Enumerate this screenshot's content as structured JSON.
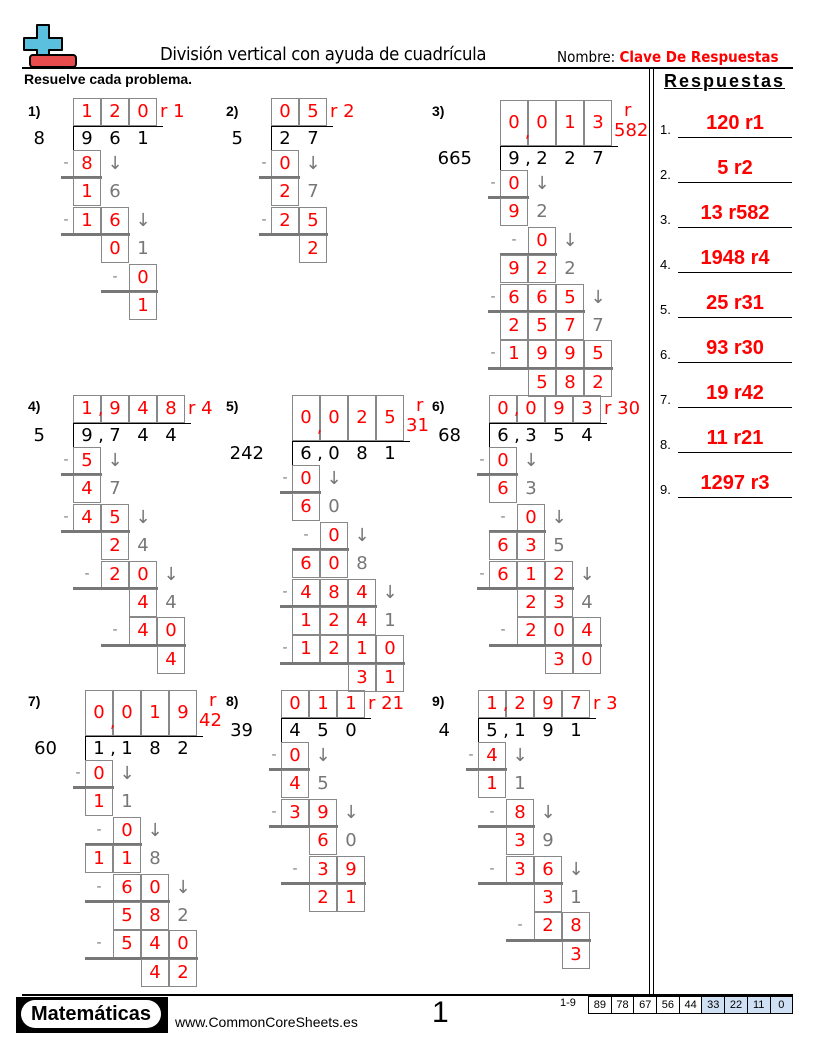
{
  "header": {
    "title": "División vertical con ayuda de cuadrícula",
    "name_label": "Nombre:",
    "name_value": "Clave De Respuestas",
    "instructions": "Resuelve cada problema.",
    "logo": "plus-minus-logo"
  },
  "colors": {
    "answer": "#ff0000",
    "work_gray": "#777777",
    "logo_blue": "#5bc0de",
    "logo_red": "#e84c4c",
    "score_blue": "#cfe0f5"
  },
  "answers": {
    "title": "Respuestas",
    "items": [
      {
        "num": "1.",
        "value": "120 r1"
      },
      {
        "num": "2.",
        "value": "5 r2"
      },
      {
        "num": "3.",
        "value": "13 r582"
      },
      {
        "num": "4.",
        "value": "1948 r4"
      },
      {
        "num": "5.",
        "value": "25 r31"
      },
      {
        "num": "6.",
        "value": "93 r30"
      },
      {
        "num": "7.",
        "value": "19 r42"
      },
      {
        "num": "8.",
        "value": "11 r21"
      },
      {
        "num": "9.",
        "value": "1297 r3"
      }
    ]
  },
  "problems": [
    {
      "label": "1)",
      "divisor": "8",
      "dividend": [
        "9",
        "6",
        "1"
      ],
      "dividend_comma": false,
      "quotient": [
        "1",
        "2",
        "0"
      ],
      "quotient_comma": false,
      "remainder_prefix": "r",
      "remainder": "1",
      "remainder_stacked": false,
      "rows": [
        {
          "minus": -1,
          "start": 0,
          "red": [
            "8"
          ],
          "gray": "↓"
        },
        {
          "start": 0,
          "red": [
            "1"
          ],
          "gray": "6"
        },
        {
          "minus": -1,
          "start": 0,
          "red": [
            "1",
            "6"
          ],
          "gray": "↓"
        },
        {
          "start": 1,
          "red": [
            "0"
          ],
          "gray": "1"
        },
        {
          "minus": 1,
          "start": 2,
          "red": [
            "0"
          ]
        },
        {
          "start": 2,
          "red": [
            "1"
          ]
        }
      ]
    },
    {
      "label": "2)",
      "divisor": "5",
      "dividend": [
        "2",
        "7"
      ],
      "dividend_comma": false,
      "quotient": [
        "0",
        "5"
      ],
      "quotient_comma": false,
      "remainder_prefix": "r",
      "remainder": "2",
      "remainder_stacked": false,
      "rows": [
        {
          "minus": -1,
          "start": 0,
          "red": [
            "0"
          ],
          "gray": "↓"
        },
        {
          "start": 0,
          "red": [
            "2"
          ],
          "gray": "7"
        },
        {
          "minus": -1,
          "start": 0,
          "red": [
            "2",
            "5"
          ]
        },
        {
          "start": 1,
          "red": [
            "2"
          ]
        }
      ]
    },
    {
      "label": "3)",
      "divisor": "665",
      "dividend": [
        "9",
        "2",
        "2",
        "7"
      ],
      "dividend_comma": true,
      "quotient": [
        "0",
        "0",
        "1",
        "3"
      ],
      "quotient_comma": true,
      "remainder_prefix": "r",
      "remainder": "582",
      "remainder_stacked": true,
      "rows": [
        {
          "minus": -1,
          "start": 0,
          "red": [
            "0"
          ],
          "gray": "↓"
        },
        {
          "start": 0,
          "red": [
            "9"
          ],
          "gray": "2"
        },
        {
          "minus": 0,
          "start": 1,
          "red": [
            "0"
          ],
          "gray": "↓"
        },
        {
          "start": 0,
          "red": [
            "9",
            "2"
          ],
          "gray": "2"
        },
        {
          "minus": -1,
          "start": 0,
          "red": [
            "6",
            "6",
            "5"
          ],
          "gray": "↓"
        },
        {
          "start": 0,
          "red": [
            "2",
            "5",
            "7"
          ],
          "gray": "7"
        },
        {
          "minus": -1,
          "start": 0,
          "red": [
            "1",
            "9",
            "9",
            "5"
          ]
        },
        {
          "start": 1,
          "red": [
            "5",
            "8",
            "2"
          ]
        }
      ]
    },
    {
      "label": "4)",
      "divisor": "5",
      "dividend": [
        "9",
        "7",
        "4",
        "4"
      ],
      "dividend_comma": true,
      "quotient": [
        "1",
        "9",
        "4",
        "8"
      ],
      "quotient_comma": true,
      "remainder_prefix": "r",
      "remainder": "4",
      "remainder_stacked": false,
      "rows": [
        {
          "minus": -1,
          "start": 0,
          "red": [
            "5"
          ],
          "gray": "↓"
        },
        {
          "start": 0,
          "red": [
            "4"
          ],
          "gray": "7"
        },
        {
          "minus": -1,
          "start": 0,
          "red": [
            "4",
            "5"
          ],
          "gray": "↓"
        },
        {
          "start": 1,
          "red": [
            "2"
          ],
          "gray": "4"
        },
        {
          "minus": 0,
          "start": 1,
          "red": [
            "2",
            "0"
          ],
          "gray": "↓"
        },
        {
          "start": 2,
          "red": [
            "4"
          ],
          "gray": "4"
        },
        {
          "minus": 1,
          "start": 2,
          "red": [
            "4",
            "0"
          ]
        },
        {
          "start": 3,
          "red": [
            "4"
          ]
        }
      ]
    },
    {
      "label": "5)",
      "divisor": "242",
      "dividend": [
        "6",
        "0",
        "8",
        "1"
      ],
      "dividend_comma": true,
      "quotient": [
        "0",
        "0",
        "2",
        "5"
      ],
      "quotient_comma": true,
      "remainder_prefix": "r",
      "remainder": "31",
      "remainder_stacked": true,
      "rows": [
        {
          "minus": -1,
          "start": 0,
          "red": [
            "0"
          ],
          "gray": "↓"
        },
        {
          "start": 0,
          "red": [
            "6"
          ],
          "gray": "0"
        },
        {
          "minus": 0,
          "start": 1,
          "red": [
            "0"
          ],
          "gray": "↓"
        },
        {
          "start": 0,
          "red": [
            "6",
            "0"
          ],
          "gray": "8"
        },
        {
          "minus": -1,
          "start": 0,
          "red": [
            "4",
            "8",
            "4"
          ],
          "gray": "↓"
        },
        {
          "start": 0,
          "red": [
            "1",
            "2",
            "4"
          ],
          "gray": "1"
        },
        {
          "minus": -1,
          "start": 0,
          "red": [
            "1",
            "2",
            "1",
            "0"
          ]
        },
        {
          "start": 2,
          "red": [
            "3",
            "1"
          ]
        }
      ]
    },
    {
      "label": "6)",
      "divisor": "68",
      "dividend": [
        "6",
        "3",
        "5",
        "4"
      ],
      "dividend_comma": true,
      "quotient": [
        "0",
        "0",
        "9",
        "3"
      ],
      "quotient_comma": true,
      "remainder_prefix": "r",
      "remainder": "30",
      "remainder_stacked": false,
      "rows": [
        {
          "minus": -1,
          "start": 0,
          "red": [
            "0"
          ],
          "gray": "↓"
        },
        {
          "start": 0,
          "red": [
            "6"
          ],
          "gray": "3"
        },
        {
          "minus": 0,
          "start": 1,
          "red": [
            "0"
          ],
          "gray": "↓"
        },
        {
          "start": 0,
          "red": [
            "6",
            "3"
          ],
          "gray": "5"
        },
        {
          "minus": -1,
          "start": 0,
          "red": [
            "6",
            "1",
            "2"
          ],
          "gray": "↓"
        },
        {
          "start": 1,
          "red": [
            "2",
            "3"
          ],
          "gray": "4"
        },
        {
          "minus": 0,
          "start": 1,
          "red": [
            "2",
            "0",
            "4"
          ]
        },
        {
          "start": 2,
          "red": [
            "3",
            "0"
          ]
        }
      ]
    },
    {
      "label": "7)",
      "divisor": "60",
      "dividend": [
        "1",
        "1",
        "8",
        "2"
      ],
      "dividend_comma": true,
      "quotient": [
        "0",
        "0",
        "1",
        "9"
      ],
      "quotient_comma": true,
      "remainder_prefix": "r",
      "remainder": "42",
      "remainder_stacked": true,
      "rows": [
        {
          "minus": -1,
          "start": 0,
          "red": [
            "0"
          ],
          "gray": "↓"
        },
        {
          "start": 0,
          "red": [
            "1"
          ],
          "gray": "1"
        },
        {
          "minus": 0,
          "start": 1,
          "red": [
            "0"
          ],
          "gray": "↓"
        },
        {
          "start": 0,
          "red": [
            "1",
            "1"
          ],
          "gray": "8"
        },
        {
          "minus": 0,
          "start": 1,
          "red": [
            "6",
            "0"
          ],
          "gray": "↓"
        },
        {
          "start": 1,
          "red": [
            "5",
            "8"
          ],
          "gray": "2"
        },
        {
          "minus": 0,
          "start": 1,
          "red": [
            "5",
            "4",
            "0"
          ]
        },
        {
          "start": 2,
          "red": [
            "4",
            "2"
          ]
        }
      ]
    },
    {
      "label": "8)",
      "divisor": "39",
      "dividend": [
        "4",
        "5",
        "0"
      ],
      "dividend_comma": false,
      "quotient": [
        "0",
        "1",
        "1"
      ],
      "quotient_comma": false,
      "remainder_prefix": "r",
      "remainder": "21",
      "remainder_stacked": false,
      "rows": [
        {
          "minus": -1,
          "start": 0,
          "red": [
            "0"
          ],
          "gray": "↓"
        },
        {
          "start": 0,
          "red": [
            "4"
          ],
          "gray": "5"
        },
        {
          "minus": -1,
          "start": 0,
          "red": [
            "3",
            "9"
          ],
          "gray": "↓"
        },
        {
          "start": 1,
          "red": [
            "6"
          ],
          "gray": "0"
        },
        {
          "minus": 0,
          "start": 1,
          "red": [
            "3",
            "9"
          ]
        },
        {
          "start": 1,
          "red": [
            "2",
            "1"
          ]
        }
      ]
    },
    {
      "label": "9)",
      "divisor": "4",
      "dividend": [
        "5",
        "1",
        "9",
        "1"
      ],
      "dividend_comma": true,
      "quotient": [
        "1",
        "2",
        "9",
        "7"
      ],
      "quotient_comma": true,
      "remainder_prefix": "r",
      "remainder": "3",
      "remainder_stacked": false,
      "rows": [
        {
          "minus": -1,
          "start": 0,
          "red": [
            "4"
          ],
          "gray": "↓"
        },
        {
          "start": 0,
          "red": [
            "1"
          ],
          "gray": "1"
        },
        {
          "minus": 0,
          "start": 1,
          "red": [
            "8"
          ],
          "gray": "↓"
        },
        {
          "start": 1,
          "red": [
            "3"
          ],
          "gray": "9"
        },
        {
          "minus": 0,
          "start": 1,
          "red": [
            "3",
            "6"
          ],
          "gray": "↓"
        },
        {
          "start": 2,
          "red": [
            "3"
          ],
          "gray": "1"
        },
        {
          "minus": 1,
          "start": 2,
          "red": [
            "2",
            "8"
          ]
        },
        {
          "start": 3,
          "red": [
            "3"
          ]
        }
      ]
    }
  ],
  "footer": {
    "brand": "Matemáticas",
    "site": "www.CommonCoreSheets.es",
    "page": "1",
    "score_label": "1-9",
    "scores": [
      "89",
      "78",
      "67",
      "56",
      "44",
      "33",
      "22",
      "11",
      "0"
    ],
    "scores_highlighted_from": 5
  }
}
